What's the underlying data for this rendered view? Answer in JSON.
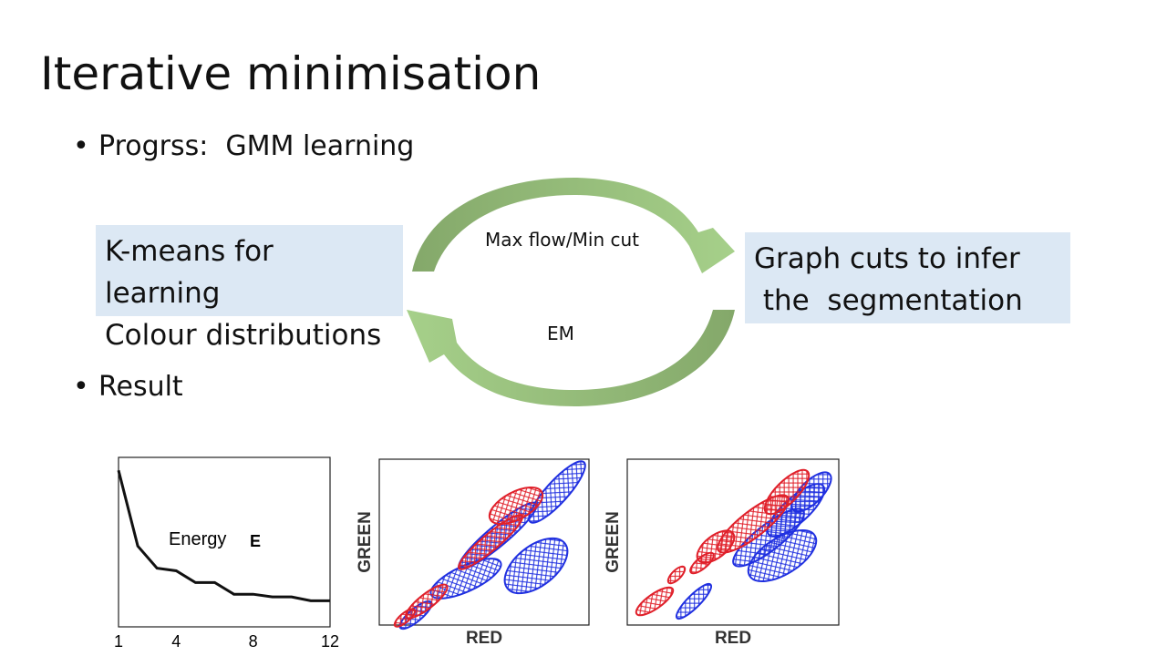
{
  "slide": {
    "title": "Iterative minimisation",
    "bullets": [
      "Progrss:  GMM learning",
      "Result"
    ]
  },
  "cycle": {
    "left_box": [
      "K-means for learning",
      "Colour distributions"
    ],
    "right_box": [
      "Graph cuts to infer",
      " the  segmentation"
    ],
    "top_label": "Max flow/Min cut",
    "bottom_label": "EM",
    "colors": {
      "arrow_dark": "#84a86a",
      "arrow_light": "#a6d08a",
      "box_bg": "#dce8f4"
    }
  },
  "chart_data": [
    {
      "type": "line",
      "x": [
        1,
        2,
        3,
        4,
        5,
        6,
        7,
        8,
        9,
        10,
        11,
        12
      ],
      "y": [
        1.0,
        0.42,
        0.25,
        0.23,
        0.14,
        0.14,
        0.05,
        0.05,
        0.03,
        0.03,
        0.0,
        0.0
      ],
      "xticks": [
        "1",
        "4",
        "8",
        "12"
      ],
      "xtick_values": [
        1,
        4,
        8,
        12
      ],
      "annotation": "Energy",
      "annotation_bold": "E",
      "xlim": [
        1,
        12
      ],
      "ylim": [
        -0.2,
        1.1
      ]
    },
    {
      "type": "scatter",
      "xlabel": "RED",
      "ylabel": "GREEN",
      "series_colors": {
        "foreground": "#e0202a",
        "background": "#2030e0"
      }
    },
    {
      "type": "scatter",
      "xlabel": "RED",
      "ylabel": "GREEN",
      "series_colors": {
        "foreground": "#e0202a",
        "background": "#2030e0"
      }
    }
  ]
}
